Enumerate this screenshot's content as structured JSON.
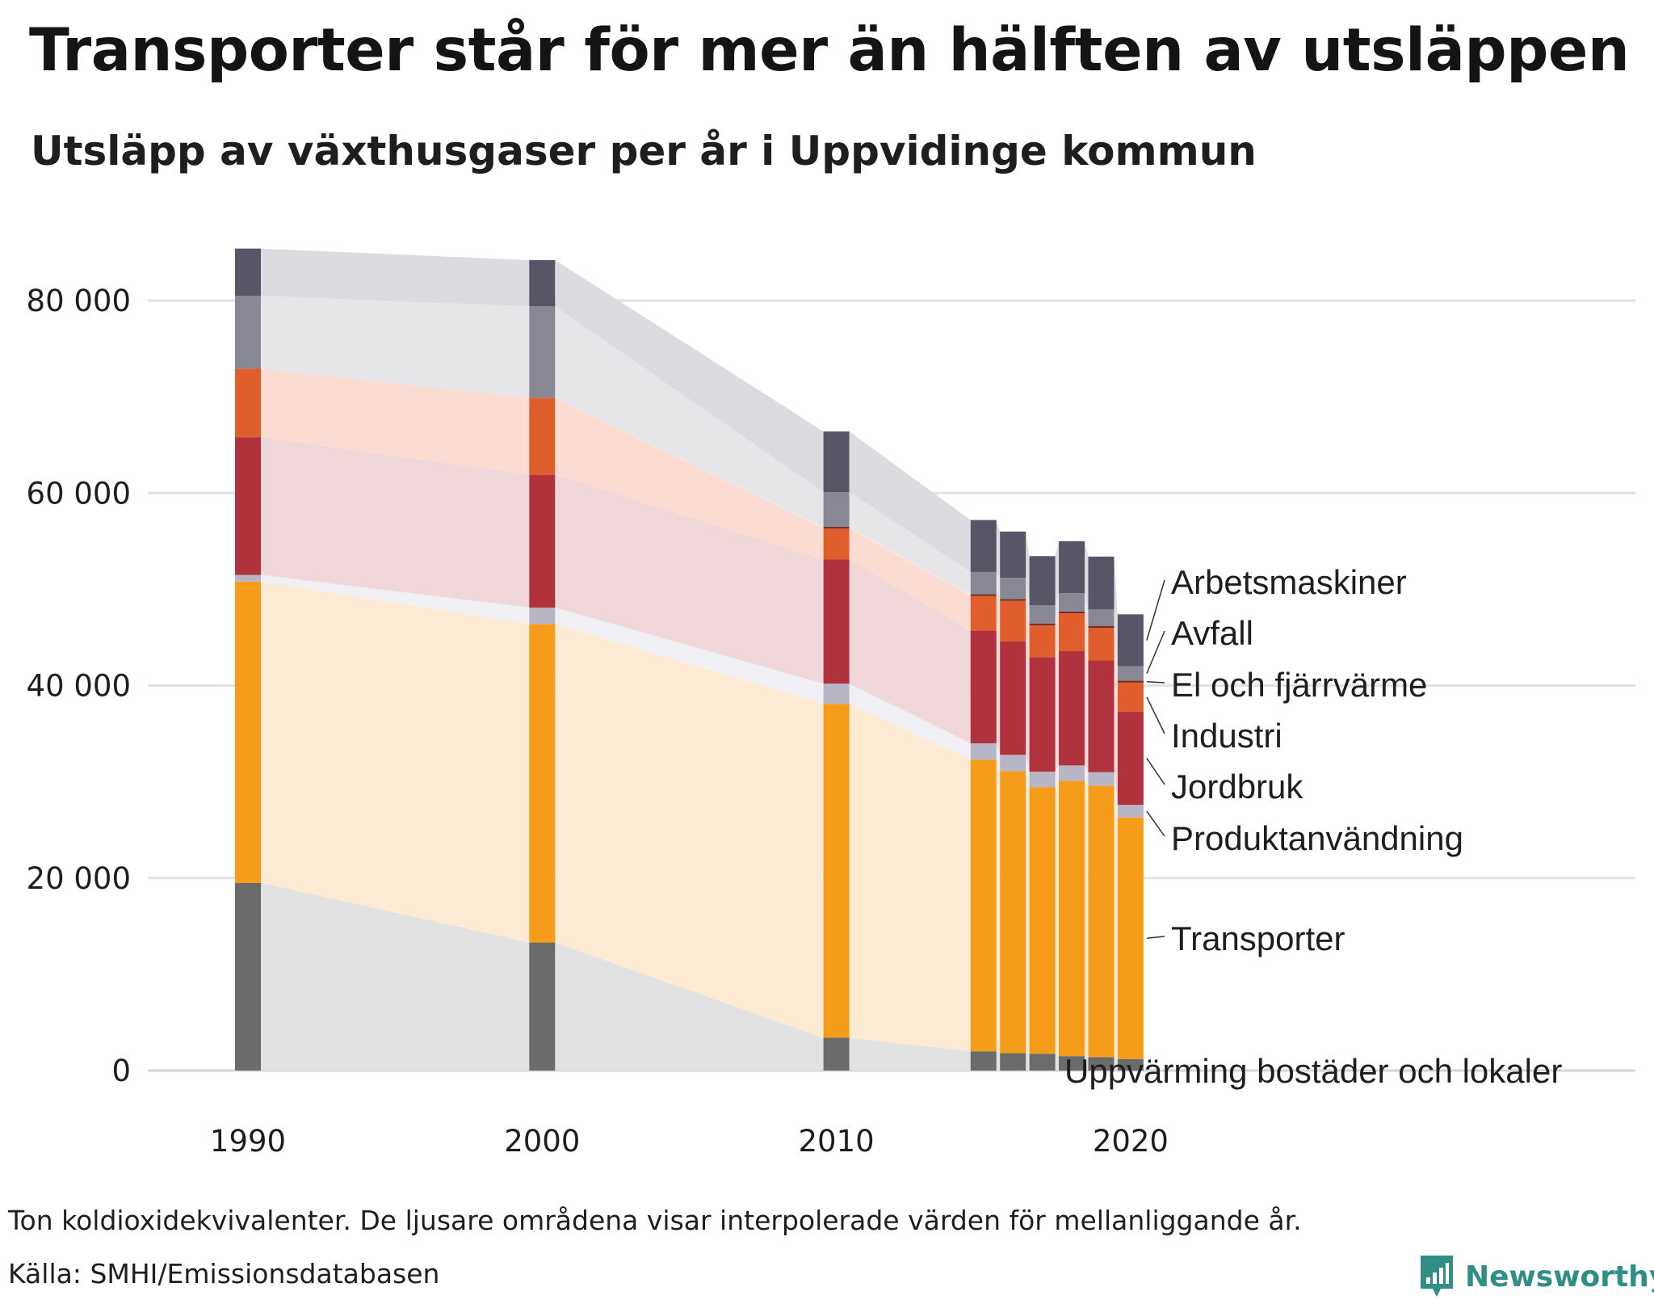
{
  "title": "Transporter står för mer än hälften av utsläppen",
  "subtitle": "Utsläpp av växthusgaser per år i Uppvidinge kommun",
  "footnote": "Ton koldioxidekvivalenter. De ljusare områdena visar interpolerade värden för mellanliggande år.",
  "source": "Källa: SMHI/Emissionsdatabasen",
  "brand": {
    "name": "Newsworthy",
    "icon": "newsworthy-logo-icon",
    "color": "#2f8f86"
  },
  "chart_data": {
    "type": "bar",
    "stacked": true,
    "x": [
      1990,
      2000,
      2010,
      2015,
      2016,
      2017,
      2018,
      2019,
      2020
    ],
    "x_ticks": [
      1990,
      2000,
      2010,
      2020
    ],
    "y_ticks": [
      0,
      20000,
      40000,
      60000,
      80000
    ],
    "y_tick_labels": [
      "0",
      "20 000",
      "40 000",
      "60 000",
      "80 000"
    ],
    "ylim": [
      0,
      86000
    ],
    "grid": true,
    "interpolated_bands": true,
    "series": [
      {
        "name": "Uppvärming bostäder och lokaler",
        "color": "#6b6b6b",
        "band_color": "#e2e2e2",
        "values": [
          19500,
          13300,
          3400,
          2000,
          1800,
          1750,
          1500,
          1400,
          1200
        ]
      },
      {
        "name": "Transporter",
        "color": "#f59c1a",
        "band_color": "#fcebd2",
        "values": [
          31300,
          33100,
          34700,
          30300,
          29300,
          27700,
          28600,
          28200,
          25100
        ]
      },
      {
        "name": "Produktanvändning",
        "color": "#b8b6c6",
        "band_color": "#f0eff4",
        "values": [
          700,
          1700,
          2100,
          1700,
          1700,
          1600,
          1600,
          1400,
          1300
        ]
      },
      {
        "name": "Jordbruk",
        "color": "#b0323d",
        "band_color": "#f0d7da",
        "values": [
          14300,
          13800,
          12900,
          11700,
          11800,
          11900,
          11900,
          11600,
          9700
        ]
      },
      {
        "name": "Industri",
        "color": "#e05e2c",
        "band_color": "#fbdcd2",
        "values": [
          7100,
          8000,
          3200,
          3600,
          4200,
          3300,
          3900,
          3400,
          3000
        ]
      },
      {
        "name": "El och fjärrvärme",
        "color": "#7a2e2a",
        "band_color": "#f2e6e4",
        "values": [
          0,
          0,
          200,
          200,
          200,
          200,
          200,
          200,
          200
        ]
      },
      {
        "name": "Avfall",
        "color": "#888794",
        "band_color": "#e6e6e9",
        "values": [
          7600,
          9500,
          3600,
          2300,
          2200,
          1900,
          1900,
          1700,
          1500
        ]
      },
      {
        "name": "Arbetsmaskiner",
        "color": "#575566",
        "band_color": "#dcdce0",
        "values": [
          4900,
          4800,
          6300,
          5400,
          4800,
          5100,
          5400,
          5500,
          5400
        ]
      }
    ],
    "legend": "right, direct labels"
  }
}
